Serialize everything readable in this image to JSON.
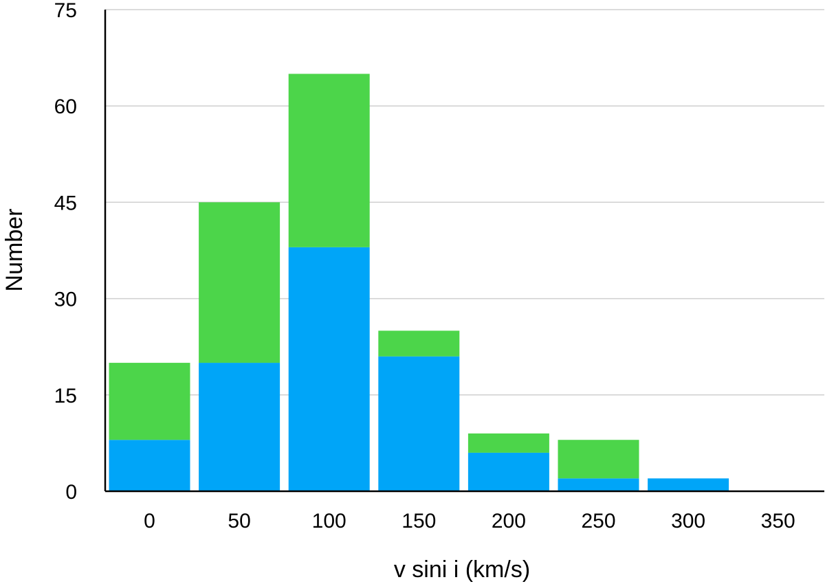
{
  "chart_data": {
    "type": "bar",
    "stacked": true,
    "categories": [
      "0",
      "50",
      "100",
      "150",
      "200",
      "250",
      "300",
      "350"
    ],
    "series": [
      {
        "values": [
          8,
          20,
          38,
          21,
          6,
          2,
          2,
          0
        ],
        "color": "#00A5F8"
      },
      {
        "values": [
          12,
          25,
          27,
          4,
          3,
          6,
          0,
          0
        ],
        "color": "#4CD54A"
      }
    ],
    "title": "",
    "xlabel": "v sini i (km/s)",
    "ylabel": "Number",
    "ylim": [
      0,
      75
    ],
    "yticks": [
      "0",
      "15",
      "30",
      "45",
      "60",
      "75"
    ],
    "grid": true,
    "legend": "none"
  }
}
